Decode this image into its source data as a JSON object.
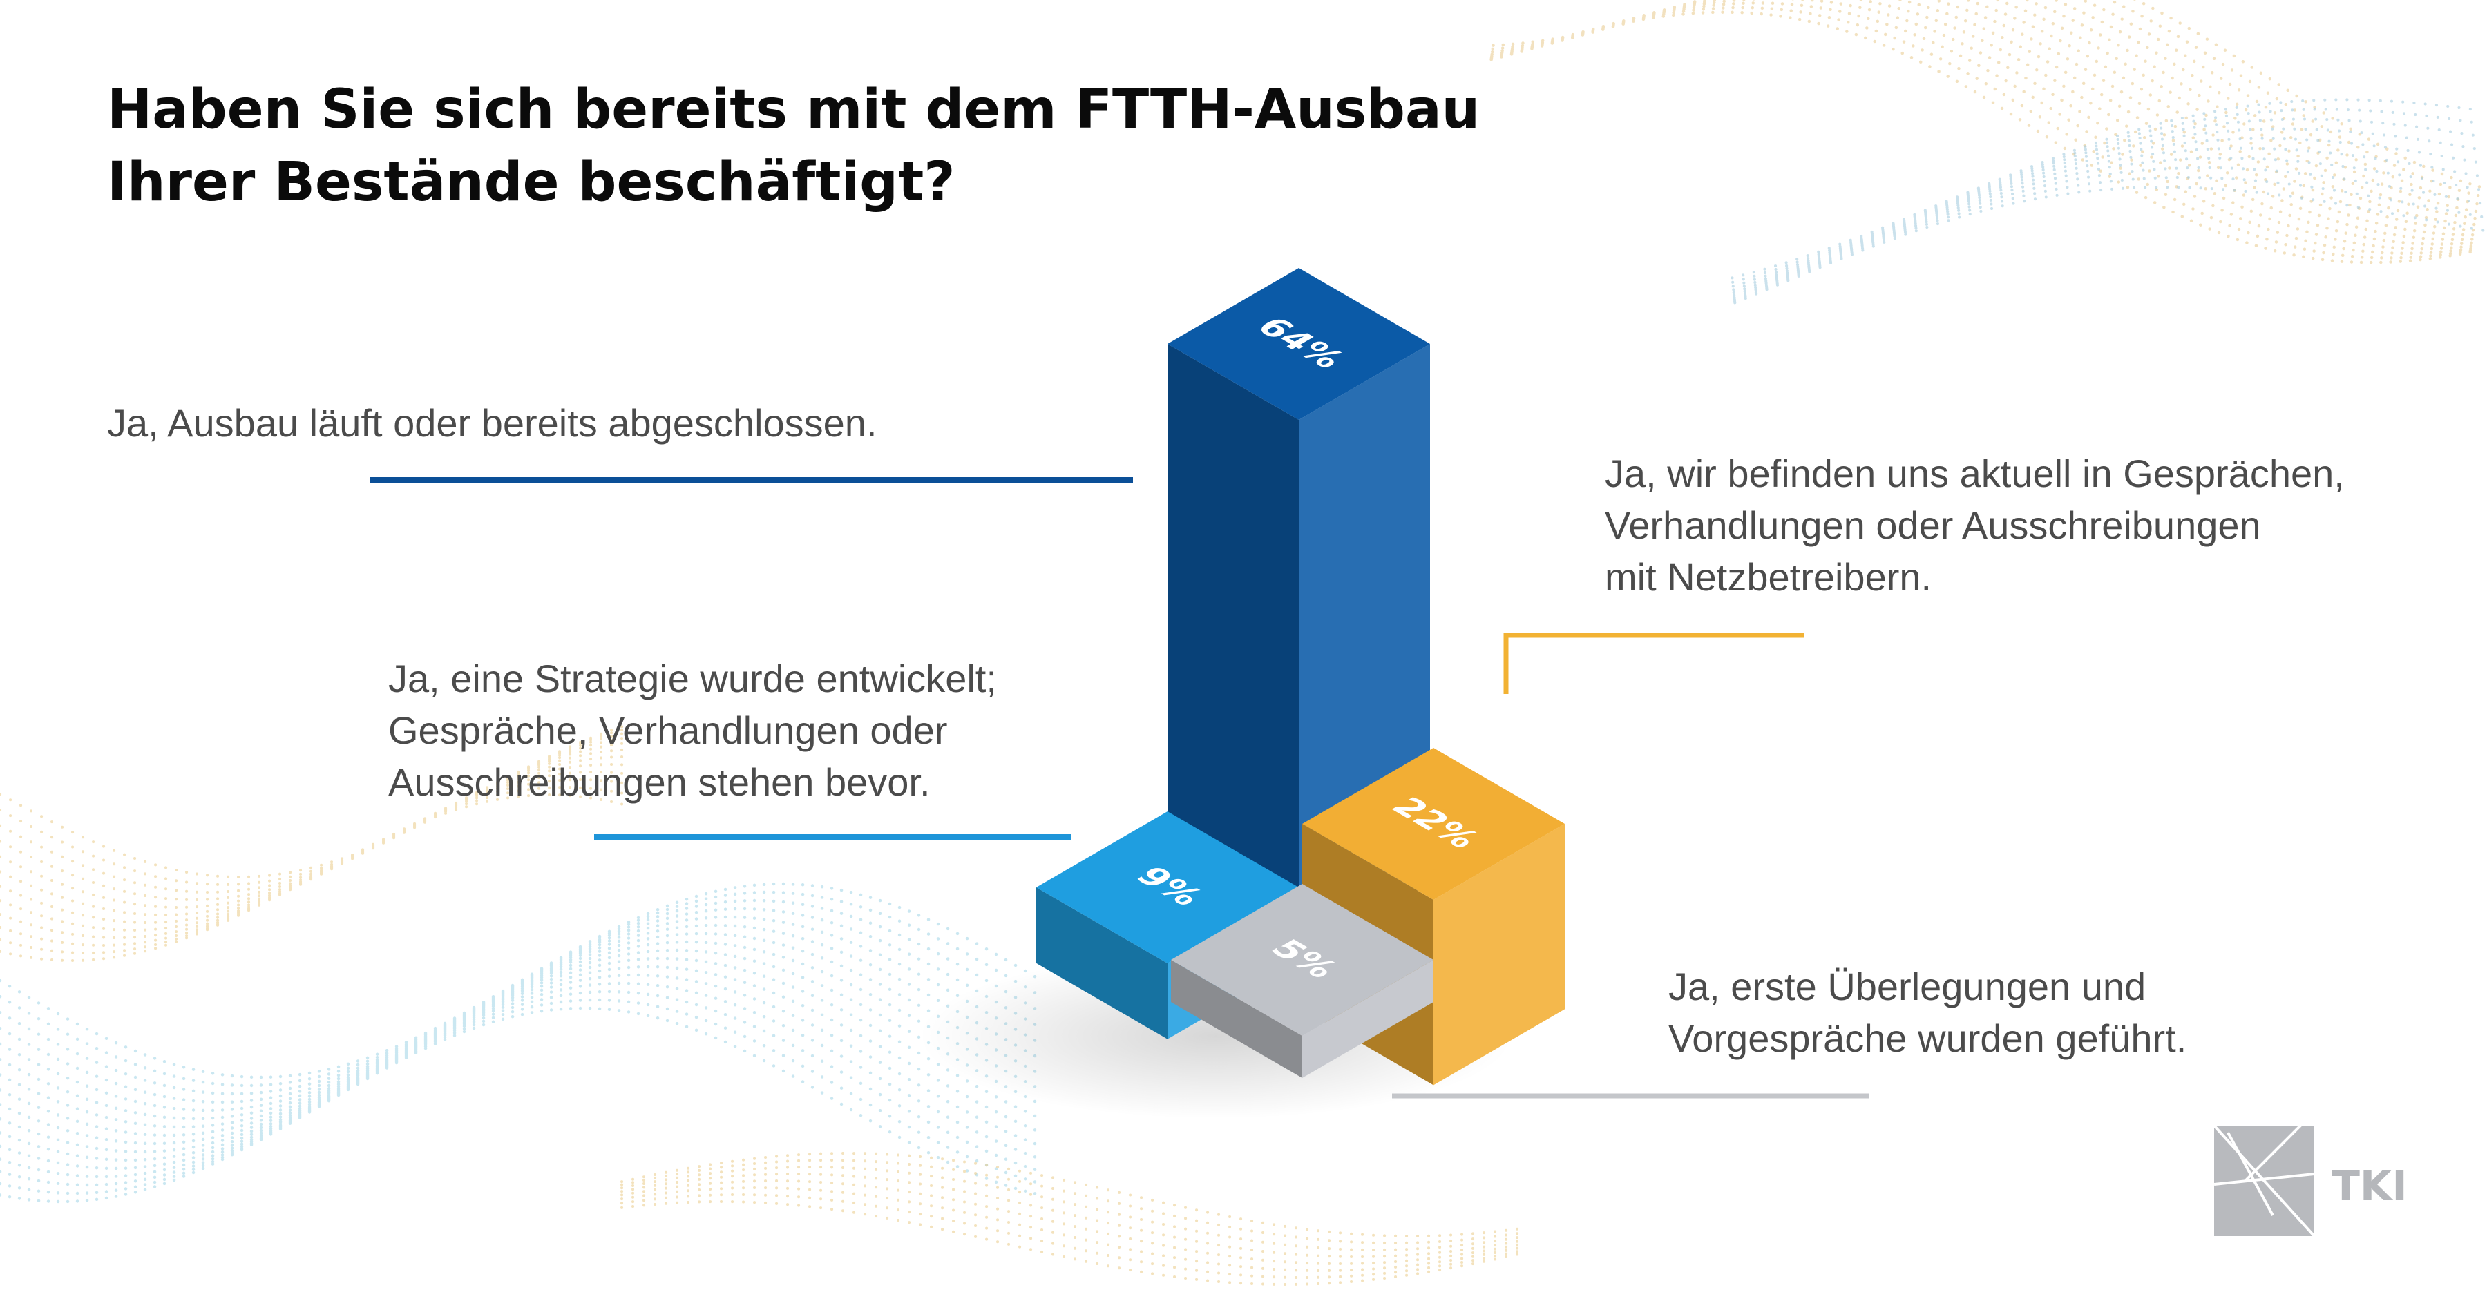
{
  "chart_data": {
    "type": "bar",
    "title": "Haben Sie sich bereits mit dem FTTH-Ausbau Ihrer Bestände beschäftigt?",
    "unit": "%",
    "series": [
      {
        "name": "Ja, Ausbau läuft oder bereits abgeschlossen.",
        "value": 64,
        "label": "64%",
        "color": "#0b5aa7"
      },
      {
        "name": "Ja, wir befinden uns aktuell in Gesprächen, Verhandlungen oder Ausschreibungen mit Netzbetreibern.",
        "value": 22,
        "label": "22%",
        "color": "#f2ae34"
      },
      {
        "name": "Ja, eine Strategie wurde entwickelt; Gespräche, Verhandlungen oder Ausschreibungen stehen bevor.",
        "value": 9,
        "label": "9%",
        "color": "#1f9ee0"
      },
      {
        "name": "Ja, erste Überlegungen und Vorgespräche wurden geführt.",
        "value": 5,
        "label": "5%",
        "color": "#bfc2c8"
      }
    ]
  },
  "title_lines": [
    "Haben Sie sich bereits mit dem FTTH-Ausbau",
    "Ihrer Bestände beschäftigt?"
  ],
  "labels": {
    "ausbau": [
      "Ja, Ausbau läuft oder bereits abgeschlossen."
    ],
    "gespraeche": [
      "Ja, wir befinden uns aktuell in Gesprächen,",
      "Verhandlungen oder Ausschreibungen",
      "mit Netzbetreibern."
    ],
    "strategie": [
      "Ja, eine Strategie wurde entwickelt;",
      "Gespräche, Verhandlungen oder",
      "Ausschreibungen stehen bevor."
    ],
    "ueberlegungen": [
      "Ja, erste Überlegungen und",
      "Vorgespräche wurden geführt."
    ]
  },
  "logo": {
    "text": "TKI"
  }
}
